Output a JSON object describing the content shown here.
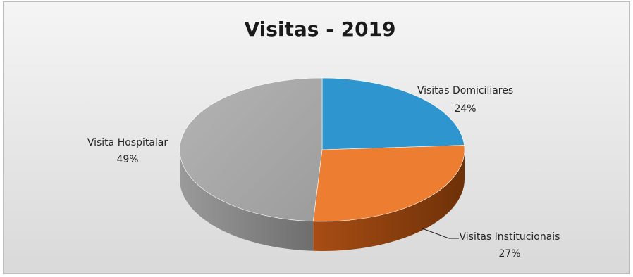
{
  "chart_data": {
    "type": "pie",
    "title": "Visitas - 2019",
    "slices": [
      {
        "label": "Visitas Domiciliares",
        "value": 24,
        "pct_label": "24%",
        "color": "#2E95CF",
        "dark": "#1c5f86"
      },
      {
        "label": "Visitas Institucionais",
        "value": 27,
        "pct_label": "27%",
        "color": "#ED7D31",
        "dark": "#9a4512"
      },
      {
        "label": "Visita Hospitalar",
        "value": 49,
        "pct_label": "49%",
        "color": "#A5A5A5",
        "dark": "#6a6a6a"
      }
    ],
    "legend": "none",
    "style": "3d-pie"
  }
}
